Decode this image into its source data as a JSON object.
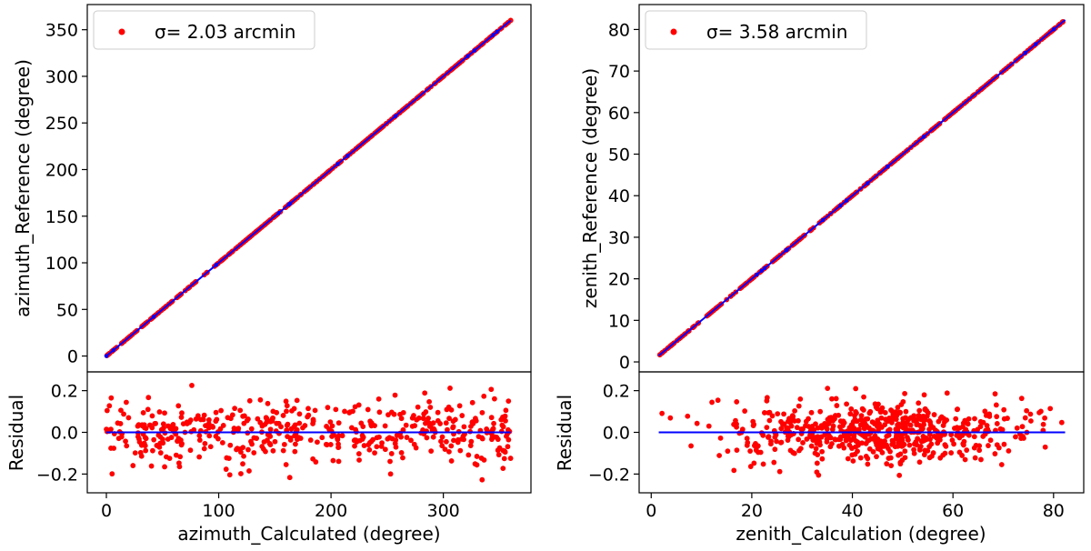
{
  "chart_data": [
    {
      "type": "scatter",
      "panel": "left",
      "legend": {
        "label": "σ= 2.03 arcmin",
        "placement": "upper-left",
        "marker_color": "#ff0000"
      },
      "main": {
        "ylabel": "azimuth_Reference (degree)",
        "xlim": [
          -17,
          378
        ],
        "ylim": [
          -17,
          377
        ],
        "yticks": [
          0,
          50,
          100,
          150,
          200,
          250,
          300,
          350
        ],
        "fit_line": {
          "x": [
            0,
            360
          ],
          "y": [
            0,
            360
          ],
          "color": "#0000ff"
        },
        "points_color": "#ff0000",
        "points_range": [
          0,
          360
        ],
        "n_points": 380
      },
      "residual": {
        "ylabel": "Residual",
        "xlabel": "azimuth_Calculated (degree)",
        "ylim": [
          -0.29,
          0.29
        ],
        "yticks": [
          -0.2,
          0.0,
          0.2
        ],
        "xticks": [
          0,
          100,
          200,
          300
        ],
        "zero_line": {
          "x": [
            0,
            360
          ],
          "y": [
            0,
            0
          ],
          "color": "#0000ff"
        },
        "points_color": "#ff0000",
        "n_points": 480,
        "x_range": [
          0,
          360
        ],
        "spread_sd": 0.075
      },
      "grid": false
    },
    {
      "type": "scatter",
      "panel": "right",
      "legend": {
        "label": "σ= 3.58 arcmin",
        "placement": "upper-left",
        "marker_color": "#ff0000"
      },
      "main": {
        "ylabel": "zenith_Reference (degree)",
        "xlim": [
          -2.4,
          86
        ],
        "ylim": [
          -2.4,
          86
        ],
        "yticks": [
          0,
          10,
          20,
          30,
          40,
          50,
          60,
          70,
          80
        ],
        "fit_line": {
          "x": [
            1.5,
            82.3
          ],
          "y": [
            1.5,
            82.3
          ],
          "color": "#0000ff"
        },
        "points_color": "#ff0000",
        "points_range": [
          1.5,
          82.3
        ],
        "n_points": 380
      },
      "residual": {
        "ylabel": "Residual",
        "xlabel": "zenith_Calculation (degree)",
        "ylim": [
          -0.29,
          0.29
        ],
        "yticks": [
          -0.2,
          0.0,
          0.2
        ],
        "xticks": [
          0,
          20,
          40,
          60,
          80
        ],
        "zero_line": {
          "x": [
            1.5,
            82.3
          ],
          "y": [
            0,
            0
          ],
          "color": "#0000ff"
        },
        "points_color": "#ff0000",
        "n_points": 600,
        "x_range": [
          1.5,
          82.3
        ],
        "x_center": 45,
        "x_spread_sd": 15,
        "spread_sd": 0.07
      },
      "grid": false
    }
  ]
}
